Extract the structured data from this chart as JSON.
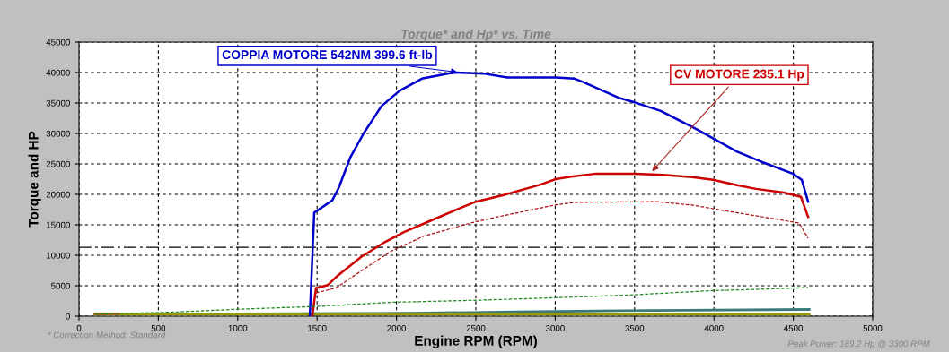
{
  "chart_data": {
    "type": "line",
    "title": "Torque* and Hp* vs. Time",
    "xlabel": "Engine RPM (RPM)",
    "ylabel": "Torque and HP",
    "xlim": [
      0,
      5000
    ],
    "ylim": [
      0,
      45000
    ],
    "xticks": [
      0,
      500,
      1000,
      1500,
      2000,
      2500,
      3000,
      3500,
      4000,
      4500,
      5000
    ],
    "yticks": [
      0,
      5000,
      10000,
      15000,
      20000,
      25000,
      30000,
      35000,
      40000,
      45000
    ],
    "grid": true,
    "line_style": "solid",
    "series": [
      {
        "color": "#0000cc",
        "x": [
          1454,
          1482,
          1595,
          1635,
          1708,
          1793,
          1906,
          2019,
          2160,
          2358,
          2557,
          2698,
          2868,
          3003,
          3122,
          3180,
          3406,
          3501,
          3665,
          3897,
          4146,
          4304,
          4497,
          4553,
          4593
        ],
        "values": [
          0,
          17000,
          19000,
          21000,
          26000,
          30000,
          34500,
          37000,
          39000,
          40000,
          39800,
          39200,
          39200,
          39200,
          39000,
          38400,
          35800,
          35100,
          33700,
          30600,
          27000,
          25300,
          23400,
          22400,
          18800
        ]
      },
      {
        "color": "#cc0000",
        "x": [
          1470,
          1493,
          1567,
          1623,
          1776,
          1929,
          2047,
          2217,
          2387,
          2500,
          2675,
          2907,
          3003,
          3100,
          3258,
          3501,
          3682,
          3874,
          3993,
          4146,
          4264,
          4440,
          4548,
          4593
        ],
        "values": [
          0,
          4600,
          5100,
          6500,
          9700,
          12200,
          13800,
          15700,
          17600,
          18800,
          19900,
          21600,
          22500,
          22900,
          23400,
          23400,
          23200,
          22800,
          22400,
          21500,
          20900,
          20300,
          19600,
          16300
        ]
      },
      {
        "color": "#aa1111",
        "line_style": "dashed",
        "x": [
          1493,
          1623,
          1799,
          1968,
          2178,
          2483,
          2636,
          2987,
          3122,
          3642,
          3874,
          4072,
          4378,
          4536,
          4593
        ],
        "values": [
          3800,
          4700,
          7800,
          10700,
          13200,
          15400,
          16300,
          18200,
          18700,
          18800,
          18200,
          17300,
          16000,
          15300,
          12800
        ]
      },
      {
        "color": "#228822",
        "line_style": "dashed",
        "x": [
          100,
          630,
          955,
          1493,
          1986,
          2483,
          2963,
          3490,
          3993,
          4378,
          4593
        ],
        "values": [
          300,
          700,
          1100,
          1600,
          2300,
          2600,
          3000,
          3500,
          4200,
          4500,
          4700
        ]
      },
      {
        "color": "#3a7a7a",
        "x": [
          100,
          1000,
          2100,
          2750,
          3400,
          4600
        ],
        "values": [
          300,
          400,
          500,
          700,
          900,
          1100
        ]
      },
      {
        "color": "#999900",
        "x": [
          100,
          4600
        ],
        "values": [
          300,
          300
        ]
      },
      {
        "color": "#b05020",
        "x": [
          100,
          250
        ],
        "values": [
          400,
          400
        ]
      }
    ],
    "ref_lines": [
      {
        "axis": "y",
        "value": 11300,
        "color": "#000000",
        "line_style": "dashed"
      }
    ],
    "annotations": [
      {
        "text": "COPPIA MOTORE 542NM 399.6 ft-lb",
        "x": 2400,
        "y": 40000
      },
      {
        "text": "CV MOTORE 235.1 Hp",
        "x": 3600,
        "y": 23500
      },
      "* Correction Method: Standard",
      "Peak Power: 189.2 Hp @ 3300 RPM"
    ]
  }
}
